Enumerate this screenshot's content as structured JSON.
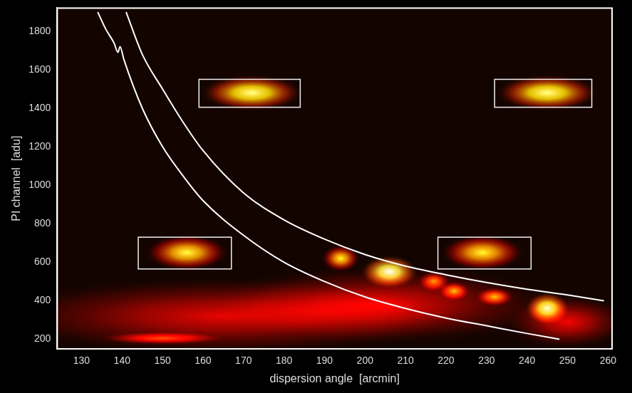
{
  "chart_data": {
    "type": "scatter",
    "xlabel": "dispersion angle  [arcmin]",
    "ylabel": "PI channel  [adu]",
    "xlim": [
      124,
      261
    ],
    "xticks": [
      130,
      140,
      150,
      160,
      170,
      180,
      190,
      200,
      210,
      220,
      230,
      240,
      250,
      260
    ],
    "ylim": [
      150,
      1920
    ],
    "yticks": [
      200,
      400,
      600,
      800,
      1000,
      1200,
      1400,
      1600,
      1800
    ],
    "grid": false,
    "tick_labels": true,
    "series": [
      {
        "color": "#ffffff",
        "line_style": "solid",
        "x": [
          141,
          145,
          150,
          155,
          160,
          170,
          180,
          190,
          200,
          210,
          220,
          230,
          240,
          250,
          259
        ],
        "values": [
          1900,
          1680,
          1500,
          1330,
          1180,
          960,
          820,
          720,
          640,
          580,
          535,
          495,
          460,
          430,
          400
        ]
      },
      {
        "color": "#ffffff",
        "line_style": "solid",
        "x": [
          134,
          136,
          138,
          139,
          139.5,
          140.5,
          145,
          150,
          155,
          160,
          170,
          180,
          190,
          200,
          210,
          220,
          230,
          240,
          248
        ],
        "values": [
          1900,
          1810,
          1740,
          1690,
          1720,
          1650,
          1400,
          1200,
          1050,
          920,
          740,
          600,
          500,
          420,
          360,
          310,
          270,
          230,
          200
        ]
      }
    ],
    "boxes": [
      {
        "x": [
          159,
          184
        ],
        "y": [
          1405,
          1550
        ]
      },
      {
        "x": [
          232,
          256
        ],
        "y": [
          1405,
          1550
        ]
      },
      {
        "x": [
          144,
          167
        ],
        "y": [
          565,
          730
        ]
      },
      {
        "x": [
          218,
          241
        ],
        "y": [
          565,
          730
        ]
      }
    ],
    "sources": [
      {
        "x": 165,
        "y": 320,
        "sx": 38,
        "sy": 130,
        "peak": 0.28
      },
      {
        "x": 205,
        "y": 380,
        "sx": 28,
        "sy": 130,
        "peak": 0.28
      },
      {
        "x": 250,
        "y": 290,
        "sx": 10,
        "sy": 90,
        "peak": 0.3
      },
      {
        "x": 150,
        "y": 205,
        "sx": 10,
        "sy": 22,
        "peak": 0.45
      },
      {
        "x": 172,
        "y": 1480,
        "sx": 8,
        "sy": 60,
        "peak": 0.85
      },
      {
        "x": 245,
        "y": 1480,
        "sx": 8,
        "sy": 60,
        "peak": 0.85
      },
      {
        "x": 156,
        "y": 650,
        "sx": 6.5,
        "sy": 60,
        "peak": 0.75
      },
      {
        "x": 229,
        "y": 650,
        "sx": 6.5,
        "sy": 60,
        "peak": 0.72
      },
      {
        "x": 194,
        "y": 620,
        "sx": 3,
        "sy": 45,
        "peak": 0.7
      },
      {
        "x": 206,
        "y": 550,
        "sx": 4.5,
        "sy": 55,
        "peak": 1.0
      },
      {
        "x": 217,
        "y": 500,
        "sx": 2.5,
        "sy": 35,
        "peak": 0.55
      },
      {
        "x": 222,
        "y": 450,
        "sx": 2.5,
        "sy": 32,
        "peak": 0.6
      },
      {
        "x": 232,
        "y": 420,
        "sx": 3,
        "sy": 32,
        "peak": 0.6
      },
      {
        "x": 245,
        "y": 360,
        "sx": 3.5,
        "sy": 55,
        "peak": 0.95
      }
    ]
  }
}
